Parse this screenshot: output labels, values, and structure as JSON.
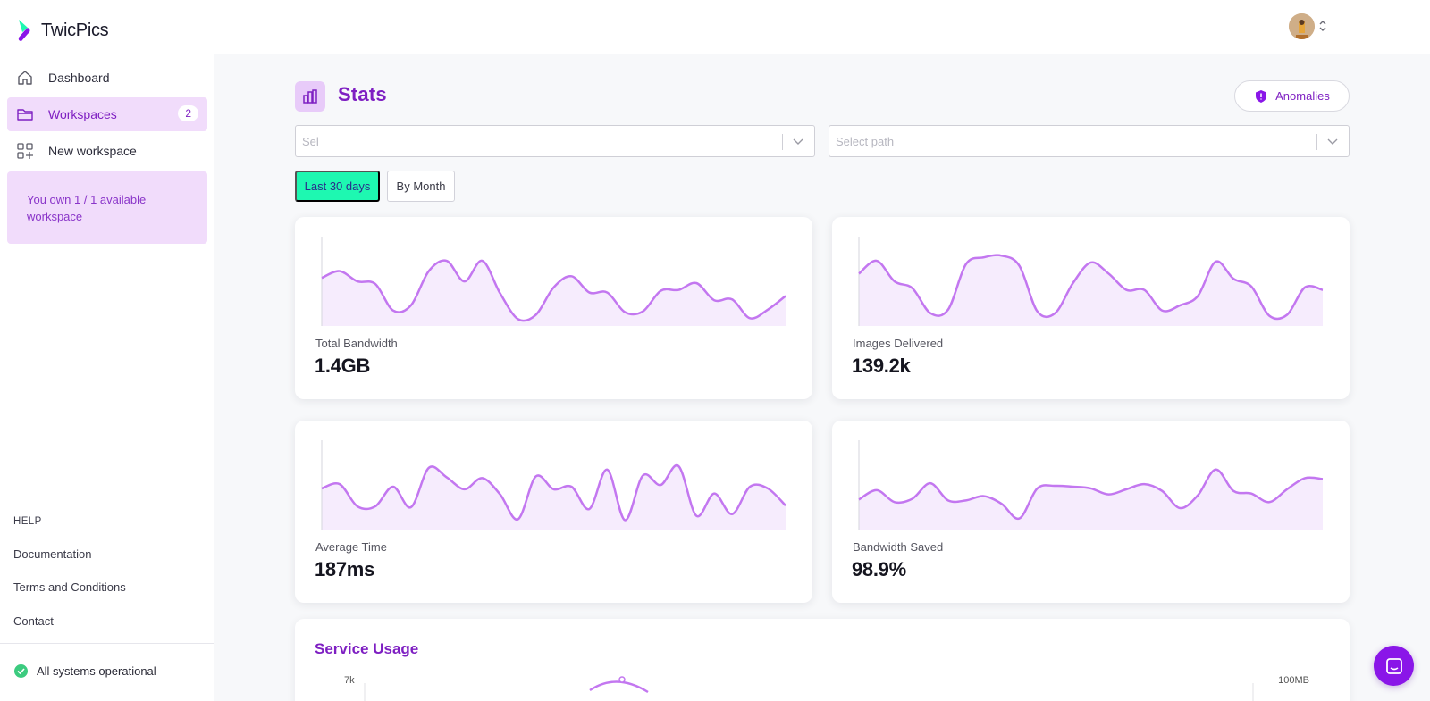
{
  "app": {
    "name": "TwicPics"
  },
  "sidebar": {
    "items": [
      {
        "label": "Dashboard",
        "icon": "home-icon"
      },
      {
        "label": "Workspaces",
        "icon": "folder-icon",
        "badge": "2",
        "active": true
      },
      {
        "label": "New workspace",
        "icon": "grid-plus-icon"
      }
    ],
    "quota": "You own 1 / 1 available workspace",
    "help": {
      "heading": "HELP",
      "links": [
        "Documentation",
        "Terms and Conditions",
        "Contact"
      ]
    },
    "status": "All systems operational"
  },
  "header": {
    "title": "Stats",
    "anomalies_label": "Anomalies"
  },
  "filters": {
    "workspace_placeholder": "Sel",
    "path_placeholder": "Select path",
    "periods": [
      "Last 30 days",
      "By Month"
    ],
    "active_period": "Last 30 days"
  },
  "cards": [
    {
      "label": "Total Bandwidth",
      "value": "1.4GB",
      "trend": [
        0.56,
        0.64,
        0.52,
        0.49,
        0.18,
        0.24,
        0.64,
        0.76,
        0.52,
        0.76,
        0.38,
        0.08,
        0.13,
        0.45,
        0.58,
        0.39,
        0.39,
        0.16,
        0.17,
        0.41,
        0.42,
        0.5,
        0.3,
        0.31,
        0.09,
        0.19,
        0.35
      ]
    },
    {
      "label": "Images Delivered",
      "value": "139.2k",
      "trend": [
        0.61,
        0.76,
        0.52,
        0.44,
        0.15,
        0.19,
        0.72,
        0.8,
        0.82,
        0.7,
        0.17,
        0.15,
        0.5,
        0.74,
        0.61,
        0.42,
        0.42,
        0.18,
        0.24,
        0.35,
        0.75,
        0.55,
        0.46,
        0.12,
        0.13,
        0.45,
        0.42
      ]
    },
    {
      "label": "Average Time",
      "value": "187ms",
      "trend": [
        0.48,
        0.53,
        0.27,
        0.27,
        0.5,
        0.26,
        0.72,
        0.61,
        0.47,
        0.6,
        0.41,
        0.12,
        0.62,
        0.47,
        0.5,
        0.24,
        0.7,
        0.11,
        0.63,
        0.52,
        0.74,
        0.16,
        0.42,
        0.18,
        0.5,
        0.48,
        0.28
      ]
    },
    {
      "label": "Bandwidth Saved",
      "value": "98.9%",
      "trend": [
        0.35,
        0.46,
        0.32,
        0.36,
        0.54,
        0.34,
        0.34,
        0.39,
        0.3,
        0.13,
        0.48,
        0.51,
        0.5,
        0.48,
        0.41,
        0.47,
        0.53,
        0.45,
        0.25,
        0.4,
        0.7,
        0.45,
        0.42,
        0.32,
        0.47,
        0.6,
        0.59
      ]
    }
  ],
  "usage": {
    "title": "Service Usage",
    "left_tick": "7k",
    "right_tick": "100MB"
  },
  "colors": {
    "accent": "#7e1fc2",
    "line": "#c377f0",
    "fill": "#f6ecfd",
    "period_active": "#1ef8b1"
  }
}
